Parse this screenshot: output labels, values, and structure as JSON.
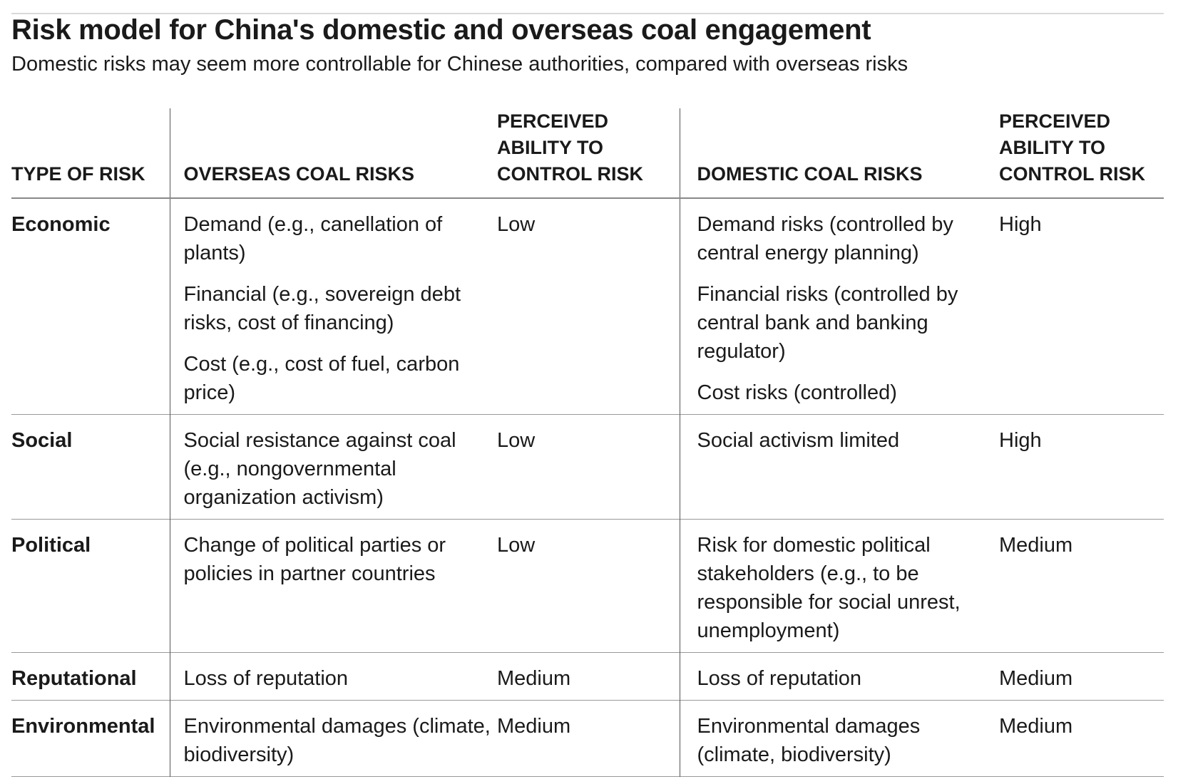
{
  "title": "Risk model for China's domestic and overseas coal engagement",
  "subtitle": "Domestic risks may seem more controllable for Chinese authorities, compared with overseas risks",
  "headers": [
    "TYPE OF RISK",
    "OVERSEAS COAL RISKS",
    "PERCEIVED ABILITY TO CONTROL RISK",
    "DOMESTIC COAL RISKS",
    "PERCEIVED ABILITY TO CONTROL RISK"
  ],
  "rows": [
    {
      "type": "Economic",
      "overseas": [
        "Demand (e.g., canellation of plants)",
        "Financial (e.g., sovereign debt risks, cost of financing)",
        "Cost (e.g., cost of fuel, carbon price)"
      ],
      "overseas_control": "Low",
      "domestic": [
        "Demand risks (controlled by central energy planning)",
        "Financial risks (controlled by central bank and banking regulator)",
        "Cost risks (controlled)"
      ],
      "domestic_control": "High"
    },
    {
      "type": "Social",
      "overseas": [
        "Social resistance against coal (e.g., nongovernmental organization activism)"
      ],
      "overseas_control": "Low",
      "domestic": [
        "Social activism limited"
      ],
      "domestic_control": "High"
    },
    {
      "type": "Political",
      "overseas": [
        "Change of political parties or policies in partner countries"
      ],
      "overseas_control": "Low",
      "domestic": [
        "Risk for domestic political stakeholders (e.g., to be responsible for social unrest, unemployment)"
      ],
      "domestic_control": "Medium"
    },
    {
      "type": "Reputational",
      "overseas": [
        "Loss of reputation"
      ],
      "overseas_control": "Medium",
      "domestic": [
        "Loss of reputation"
      ],
      "domestic_control": "Medium"
    },
    {
      "type": "Environmental",
      "overseas": [
        "Environmental damages (climate, biodiversity)"
      ],
      "overseas_control": "Medium",
      "domestic": [
        "Environmental damages (climate, biodiversity)"
      ],
      "domestic_control": "Medium"
    }
  ]
}
